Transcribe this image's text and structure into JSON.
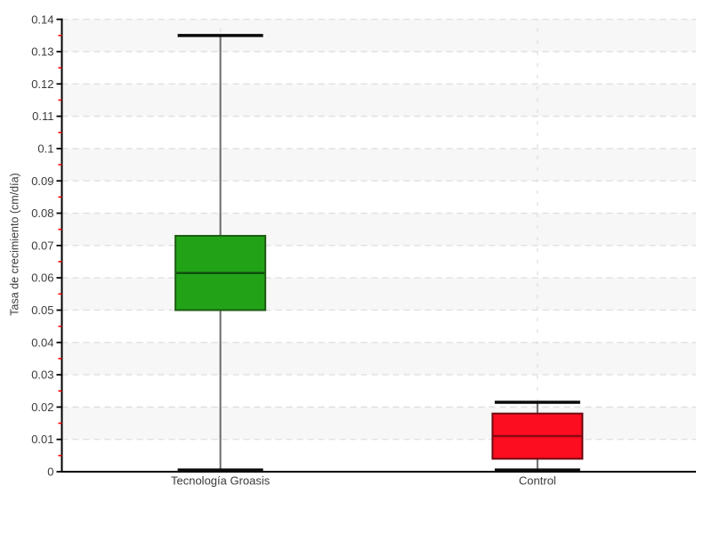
{
  "chart_data": {
    "type": "boxplot",
    "title": "",
    "xlabel": "",
    "ylabel": "Tasa de crecimiento (cm/día)",
    "categories": [
      "Tecnología Groasis",
      "Control"
    ],
    "ylim": [
      0,
      0.14
    ],
    "y_major_step": 0.01,
    "y_minor_step": 0.005,
    "y_tick_labels": [
      "0",
      "0.01",
      "0.02",
      "0.03",
      "0.04",
      "0.05",
      "0.06",
      "0.07",
      "0.08",
      "0.09",
      "0.1",
      "0.11",
      "0.12",
      "0.13",
      "0.14"
    ],
    "grid": {
      "horizontal_dashed": true,
      "vertical_category_dashed": true,
      "alternating_background_bands": true,
      "legend": "none"
    },
    "series": [
      {
        "name": "Tecnología Groasis",
        "whisker_low": 0.0005,
        "q1": 0.05,
        "median": 0.0615,
        "q3": 0.073,
        "whisker_high": 0.135,
        "fill": "#22a317",
        "border": "#1d5c12",
        "median_color": "#0e4f09"
      },
      {
        "name": "Control",
        "whisker_low": 0.0005,
        "q1": 0.004,
        "median": 0.011,
        "q3": 0.018,
        "whisker_high": 0.0215,
        "fill": "#fc0d1f",
        "border": "#6e0a12",
        "median_color": "#8a0713"
      }
    ],
    "style": {
      "background": "#ffffff",
      "band_color": "#f7f7f7",
      "grid_color": "#e0e0e0",
      "category_line_color": "#dcdcdc",
      "axis_color": "#000000",
      "tick_label_color": "#3b3b3b",
      "minor_tick_color": "#ff0000",
      "whisker_line_color": "#6a6a6a",
      "whisker_cap_color": "#0a0a0a"
    }
  }
}
